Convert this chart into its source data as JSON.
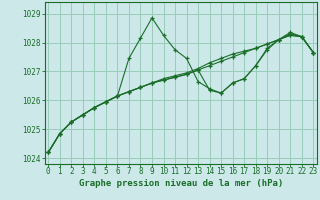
{
  "xlabel": "Graphe pression niveau de la mer (hPa)",
  "background_color": "#cce8e8",
  "grid_color": "#99ccbb",
  "line_color": "#1a6e2a",
  "marker": "+",
  "ylim": [
    1023.8,
    1029.4
  ],
  "xlim": [
    -0.3,
    23.3
  ],
  "yticks": [
    1024,
    1025,
    1026,
    1027,
    1028,
    1029
  ],
  "xticks": [
    0,
    1,
    2,
    3,
    4,
    5,
    6,
    7,
    8,
    9,
    10,
    11,
    12,
    13,
    14,
    15,
    16,
    17,
    18,
    19,
    20,
    21,
    22,
    23
  ],
  "series": [
    [
      1024.2,
      1024.85,
      1025.25,
      1025.5,
      1025.75,
      1025.95,
      1026.15,
      1027.45,
      1028.15,
      1028.85,
      1028.25,
      1027.75,
      1027.45,
      1026.65,
      1026.4,
      1026.25,
      1026.6,
      1026.75,
      1027.2,
      1027.8,
      1028.1,
      1028.35,
      1028.2,
      1027.65
    ],
    [
      1024.2,
      1024.85,
      1025.25,
      1025.5,
      1025.75,
      1025.95,
      1026.15,
      1026.3,
      1026.45,
      1026.6,
      1026.75,
      1026.85,
      1026.95,
      1027.1,
      1027.3,
      1027.45,
      1027.6,
      1027.7,
      1027.8,
      1027.95,
      1028.1,
      1028.25,
      1028.2,
      1027.65
    ],
    [
      1024.2,
      1024.85,
      1025.25,
      1025.5,
      1025.75,
      1025.95,
      1026.15,
      1026.3,
      1026.45,
      1026.6,
      1026.7,
      1026.8,
      1026.9,
      1027.05,
      1026.35,
      1026.25,
      1026.6,
      1026.75,
      1027.2,
      1027.75,
      1028.1,
      1028.3,
      1028.2,
      1027.65
    ],
    [
      1024.2,
      1024.85,
      1025.25,
      1025.5,
      1025.75,
      1025.95,
      1026.15,
      1026.3,
      1026.45,
      1026.6,
      1026.7,
      1026.8,
      1026.9,
      1027.05,
      1027.2,
      1027.35,
      1027.5,
      1027.65,
      1027.8,
      1027.95,
      1028.1,
      1028.25,
      1028.2,
      1027.65
    ]
  ]
}
